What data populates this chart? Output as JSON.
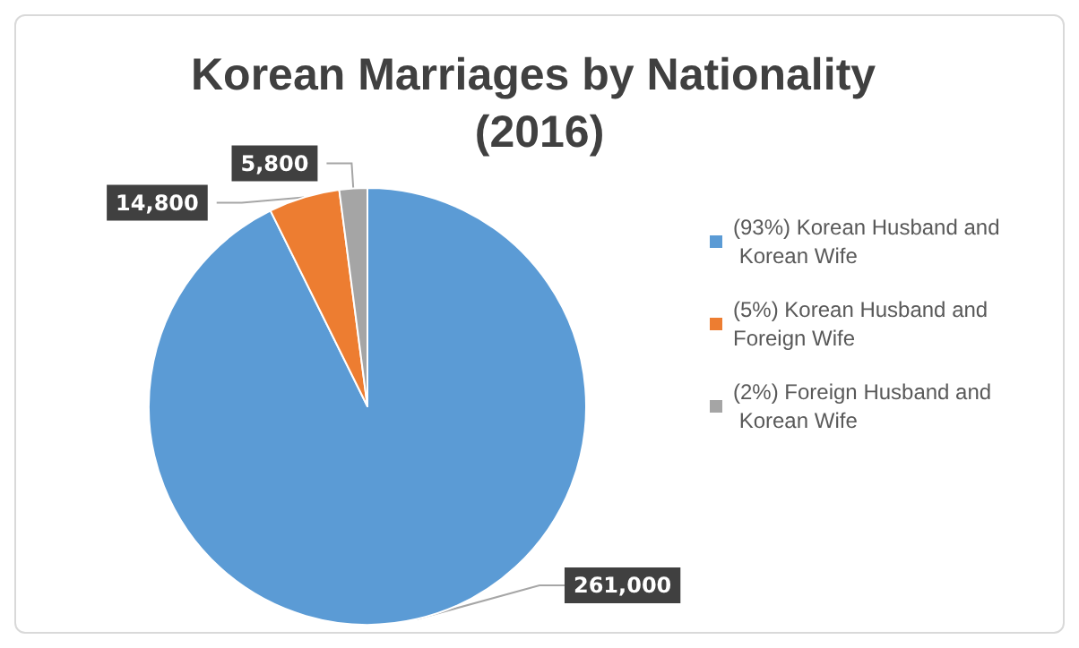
{
  "chart_data": {
    "type": "pie",
    "title": "Korean Marriages by Nationality (2016)",
    "categories": [
      "(93%) Korean Husband and Korean Wife",
      "(5%) Korean Husband and Foreign Wife",
      "(2%) Foreign Husband and Korean Wife"
    ],
    "values": [
      261000,
      14800,
      5800
    ],
    "value_labels": [
      "261,000",
      "14,800",
      "5,800"
    ],
    "colors": [
      "#5b9bd5",
      "#ed7d31",
      "#a5a5a5"
    ],
    "legend": "right"
  }
}
